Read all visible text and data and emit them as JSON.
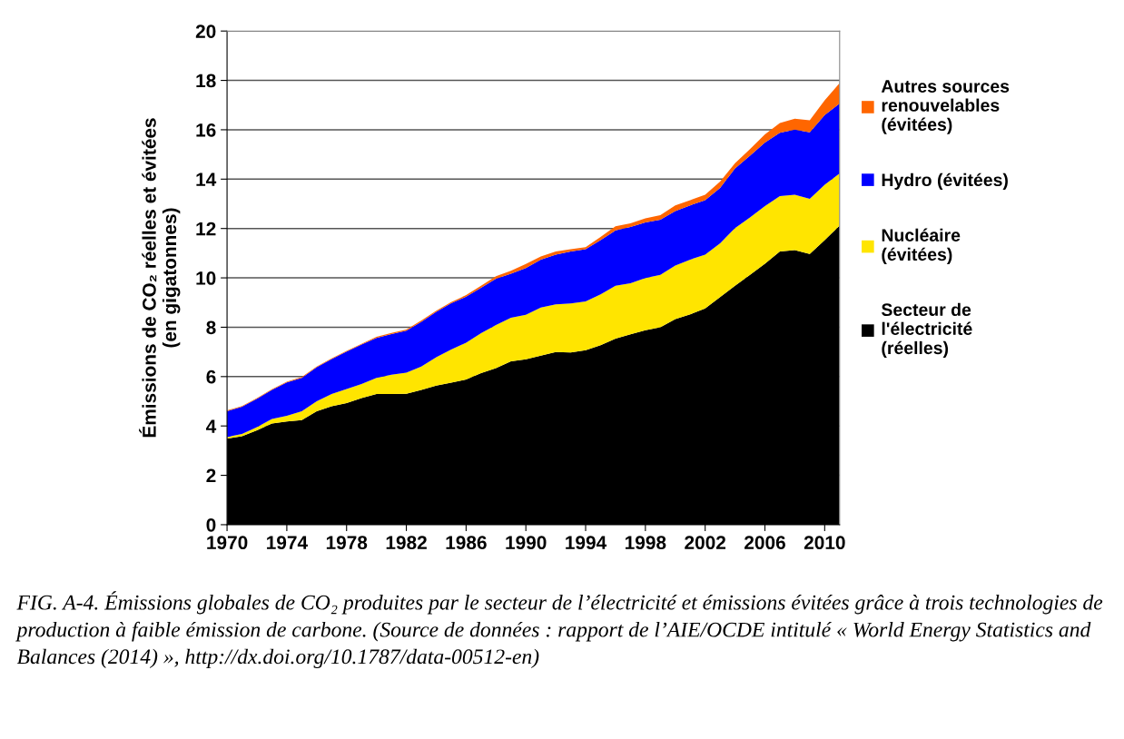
{
  "chart_data": {
    "type": "area",
    "stacked": true,
    "ylabel": "Émissions de CO₂ réelles et évitées\n(en gigatonnes)",
    "x": [
      1970,
      1971,
      1972,
      1973,
      1974,
      1975,
      1976,
      1977,
      1978,
      1979,
      1980,
      1981,
      1982,
      1983,
      1984,
      1985,
      1986,
      1987,
      1988,
      1989,
      1990,
      1991,
      1992,
      1993,
      1994,
      1995,
      1996,
      1997,
      1998,
      1999,
      2000,
      2001,
      2002,
      2003,
      2004,
      2005,
      2006,
      2007,
      2008,
      2009,
      2010,
      2011
    ],
    "series": [
      {
        "name": "Secteur de\nl'électricité\n(réelles)",
        "color": "#000000",
        "values": [
          3.49,
          3.58,
          3.82,
          4.1,
          4.18,
          4.24,
          4.6,
          4.8,
          4.93,
          5.13,
          5.29,
          5.29,
          5.3,
          5.46,
          5.63,
          5.75,
          5.88,
          6.14,
          6.34,
          6.62,
          6.7,
          6.85,
          7.0,
          6.98,
          7.07,
          7.27,
          7.54,
          7.71,
          7.88,
          8.0,
          8.33,
          8.52,
          8.76,
          9.22,
          9.68,
          10.12,
          10.57,
          11.07,
          11.12,
          10.97,
          11.53,
          12.12
        ]
      },
      {
        "name": "Nucléaire\n(évitées)",
        "color": "#ffe500",
        "values": [
          0.06,
          0.1,
          0.13,
          0.18,
          0.23,
          0.36,
          0.4,
          0.49,
          0.57,
          0.57,
          0.66,
          0.79,
          0.86,
          0.95,
          1.15,
          1.35,
          1.49,
          1.62,
          1.75,
          1.76,
          1.8,
          1.95,
          1.93,
          1.98,
          1.98,
          2.06,
          2.14,
          2.07,
          2.11,
          2.12,
          2.17,
          2.22,
          2.18,
          2.18,
          2.34,
          2.33,
          2.34,
          2.24,
          2.25,
          2.23,
          2.24,
          2.11
        ]
      },
      {
        "name": "Hydro (évitées)",
        "color": "#0000ff",
        "values": [
          1.05,
          1.1,
          1.15,
          1.18,
          1.35,
          1.35,
          1.38,
          1.42,
          1.51,
          1.6,
          1.62,
          1.64,
          1.7,
          1.81,
          1.84,
          1.87,
          1.87,
          1.84,
          1.88,
          1.79,
          1.9,
          1.94,
          2.01,
          2.11,
          2.11,
          2.2,
          2.24,
          2.28,
          2.26,
          2.24,
          2.21,
          2.2,
          2.21,
          2.24,
          2.41,
          2.5,
          2.57,
          2.57,
          2.64,
          2.7,
          2.83,
          2.83
        ]
      },
      {
        "name": "Autres sources\nrenouvelables\n(évitées)",
        "color": "#ff6600",
        "values": [
          0.03,
          0.03,
          0.03,
          0.03,
          0.03,
          0.03,
          0.03,
          0.03,
          0.03,
          0.03,
          0.04,
          0.05,
          0.05,
          0.05,
          0.05,
          0.05,
          0.06,
          0.08,
          0.1,
          0.12,
          0.16,
          0.13,
          0.13,
          0.09,
          0.08,
          0.13,
          0.17,
          0.15,
          0.16,
          0.18,
          0.23,
          0.21,
          0.22,
          0.26,
          0.22,
          0.27,
          0.33,
          0.39,
          0.44,
          0.48,
          0.59,
          0.83
        ]
      }
    ],
    "xlim": [
      1970,
      2011
    ],
    "xticks": [
      1970,
      1974,
      1978,
      1982,
      1986,
      1990,
      1994,
      1998,
      2002,
      2006,
      2010
    ],
    "ylim": [
      0,
      20
    ],
    "yticks": [
      0,
      2,
      4,
      6,
      8,
      10,
      12,
      14,
      16,
      18,
      20
    ],
    "grid": "y",
    "legend": "right",
    "annotations": [
      "FIG. A-4. Émissions globales de CO₂ produites par le secteur de l’électricité et émissions évitées grâce à trois technologies de production à faible émission de carbone. (Source de données : rapport de l’AIE/OCDE intitulé « World Energy Statistics and Balances (2014) », http://dx.doi.org/10.1787/data-00512-en)"
    ]
  }
}
